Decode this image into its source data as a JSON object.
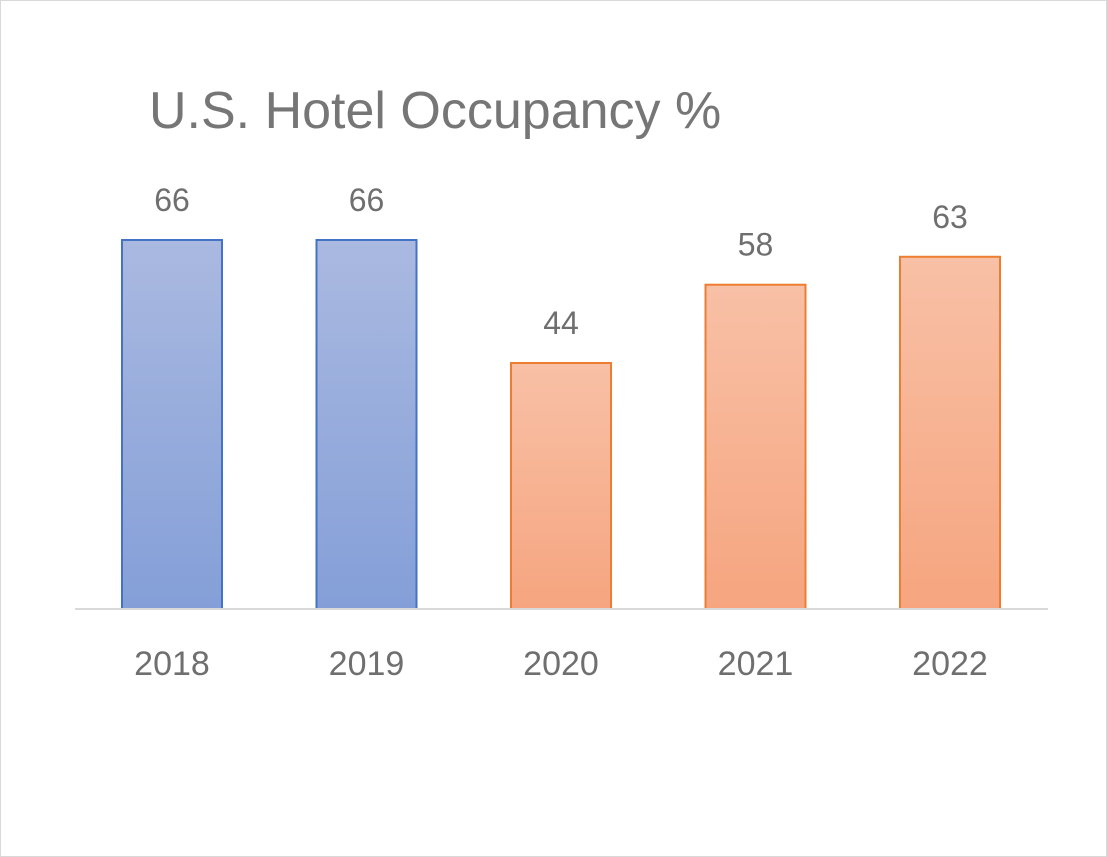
{
  "chart_data": {
    "type": "bar",
    "title": "U.S. Hotel Occupancy %",
    "categories": [
      "2018",
      "2019",
      "2020",
      "2021",
      "2022"
    ],
    "values": [
      66,
      66,
      44,
      58,
      63
    ],
    "xlabel": "",
    "ylabel": "",
    "ylim": [
      0,
      80
    ],
    "grid": false,
    "legend": "none",
    "bar_colors": [
      "blue",
      "blue",
      "orange",
      "orange",
      "orange"
    ],
    "colors": {
      "blue_top": "#aab9e0",
      "blue_bottom": "#849fd8",
      "blue_border": "#4472c4",
      "orange_top": "#f8c0a6",
      "orange_bottom": "#f6a57f",
      "orange_border": "#ed7d31",
      "axis": "#d9d9d9",
      "text": "#767676"
    }
  }
}
